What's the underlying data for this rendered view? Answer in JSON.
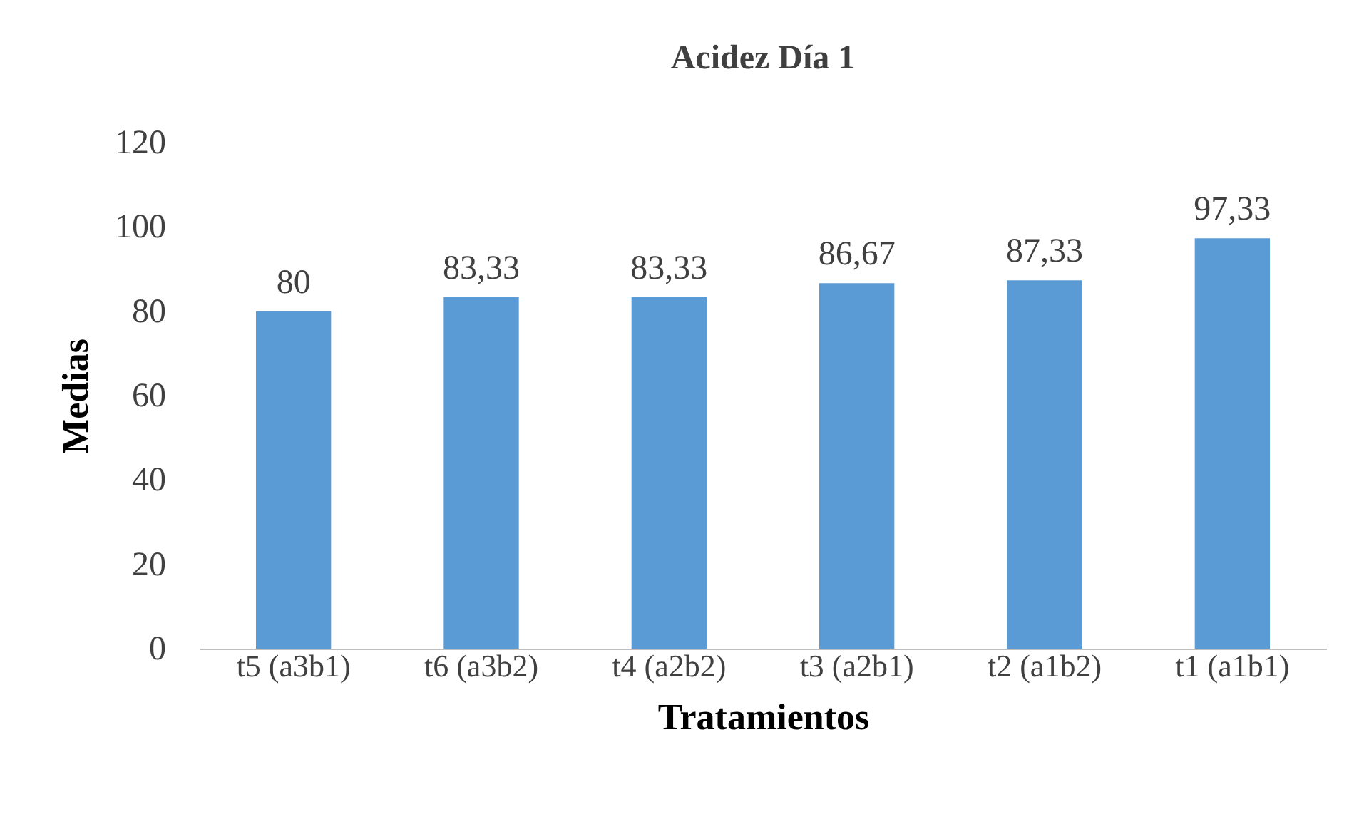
{
  "chart_data": {
    "type": "bar",
    "title": "Acidez Día 1",
    "xlabel": "Tratamientos",
    "ylabel": "Medias",
    "categories": [
      "t5 (a3b1)",
      "t6 (a3b2)",
      "t4 (a2b2)",
      "t3 (a2b1)",
      "t2 (a1b2)",
      "t1 (a1b1)"
    ],
    "values": [
      80,
      83.33,
      83.33,
      86.67,
      87.33,
      97.33
    ],
    "value_labels": [
      "80",
      "83,33",
      "83,33",
      "86,67",
      "87,33",
      "97,33"
    ],
    "color": "#5b9bd5",
    "ylim": [
      0,
      120
    ],
    "yticks": [
      0,
      20,
      40,
      60,
      80,
      100,
      120
    ],
    "grid": false
  }
}
